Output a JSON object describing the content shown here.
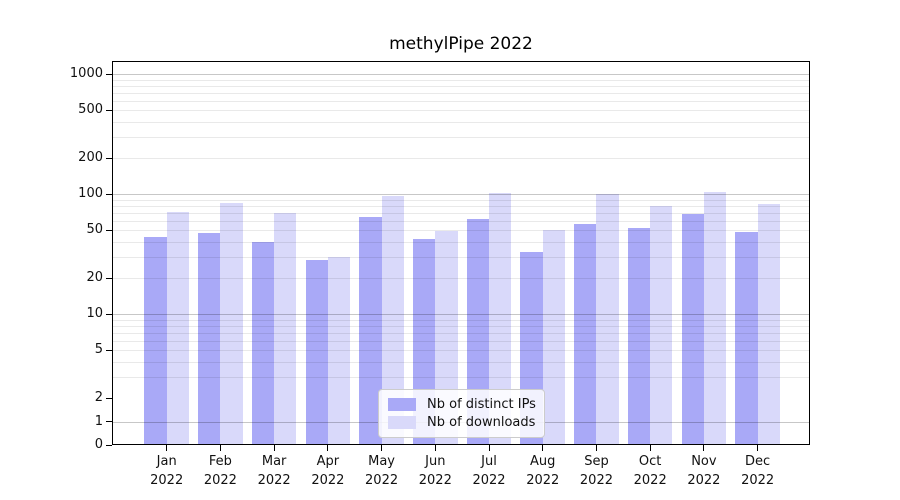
{
  "chart_data": {
    "type": "bar",
    "title": "methylPipe 2022",
    "year": "2022",
    "categories": [
      "Jan",
      "Feb",
      "Mar",
      "Apr",
      "May",
      "Jun",
      "Jul",
      "Aug",
      "Sep",
      "Oct",
      "Nov",
      "Dec"
    ],
    "series": [
      {
        "name": "Nb of distinct IPs",
        "color": "#a9a9f7",
        "values": [
          44,
          47,
          40,
          28,
          65,
          42,
          62,
          33,
          56,
          52,
          68,
          48
        ]
      },
      {
        "name": "Nb of downloads",
        "color": "#d9d9fa",
        "values": [
          71,
          84,
          69,
          30,
          96,
          49,
          102,
          50,
          100,
          80,
          105,
          83
        ]
      }
    ],
    "xlabel": "",
    "ylabel": "",
    "y_scale": "symlog",
    "ylim": [
      0,
      1300
    ],
    "y_ticks": [
      1000,
      500,
      200,
      100,
      50,
      20,
      10,
      5,
      2,
      1,
      0
    ],
    "grid": {
      "major": [
        1,
        10,
        100,
        1000
      ],
      "minor": [
        3,
        4,
        5,
        6,
        7,
        8,
        9,
        20,
        30,
        40,
        50,
        60,
        70,
        80,
        90,
        200,
        300,
        400,
        500,
        600,
        700,
        800,
        900
      ]
    },
    "legend_position": "lower center",
    "grid_on": true
  },
  "colors": {
    "spine": "#000000",
    "tick_text": "#111111",
    "legend_border": "#cccccc"
  }
}
